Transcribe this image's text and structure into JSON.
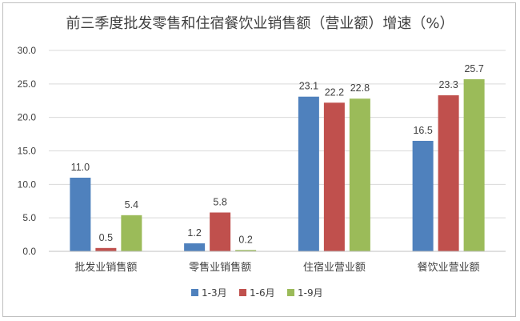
{
  "chart_data": {
    "type": "bar",
    "title": "前三季度批发零售和住宿餐饮业销售额（营业额）增速（%）",
    "categories": [
      "批发业销售额",
      "零售业销售额",
      "住宿业营业额",
      "餐饮业营业额"
    ],
    "series": [
      {
        "name": "1-3月",
        "color": "#4f81bd",
        "values": [
          11.0,
          1.2,
          23.1,
          16.5
        ]
      },
      {
        "name": "1-6月",
        "color": "#c0504d",
        "values": [
          0.5,
          5.8,
          22.2,
          23.3
        ]
      },
      {
        "name": "1-9月",
        "color": "#9bbb59",
        "values": [
          5.4,
          0.2,
          22.8,
          25.7
        ]
      }
    ],
    "ylim": [
      0,
      30
    ],
    "yticks": [
      "0.0",
      "5.0",
      "10.0",
      "15.0",
      "20.0",
      "25.0",
      "30.0"
    ],
    "grid": true,
    "legend": "bottom",
    "data_labels": true
  }
}
